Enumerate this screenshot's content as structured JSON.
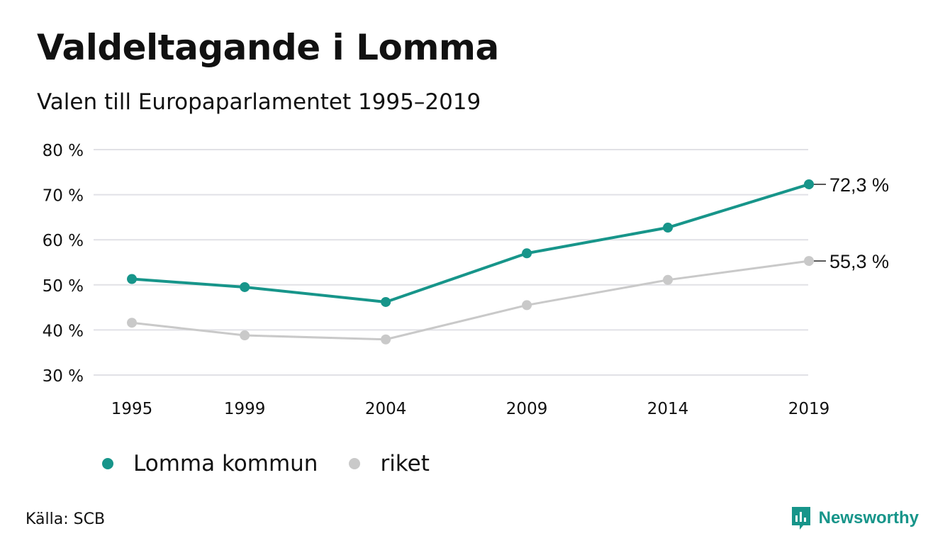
{
  "title": "Valdeltagande i Lomma",
  "subtitle": "Valen till Europaparlamentet 1995–2019",
  "source": "Källa: SCB",
  "brand": "Newsworthy",
  "colors": {
    "lomma": "#17958a",
    "riket": "#c9c9c9",
    "grid": "#e1e1e6",
    "text": "#111111"
  },
  "chart_data": {
    "type": "line",
    "title": "Valdeltagande i Lomma",
    "subtitle": "Valen till Europaparlamentet 1995–2019",
    "x": [
      "1995",
      "1999",
      "2004",
      "2009",
      "2014",
      "2019"
    ],
    "x_values": [
      1995,
      1999,
      2004,
      2009,
      2014,
      2019
    ],
    "ylim": [
      30,
      80
    ],
    "yticks": [
      30,
      40,
      50,
      60,
      70,
      80
    ],
    "ytick_labels": [
      "30 %",
      "40 %",
      "50 %",
      "60 %",
      "70 %",
      "80 %"
    ],
    "grid": true,
    "legend_position": "bottom-left",
    "series": [
      {
        "name": "Lomma kommun",
        "color": "#17958a",
        "values": [
          51.3,
          49.5,
          46.2,
          57.0,
          62.7,
          72.3
        ],
        "end_label": "72,3 %"
      },
      {
        "name": "riket",
        "color": "#c9c9c9",
        "values": [
          41.6,
          38.8,
          37.9,
          45.5,
          51.1,
          55.3
        ],
        "end_label": "55,3 %"
      }
    ]
  }
}
